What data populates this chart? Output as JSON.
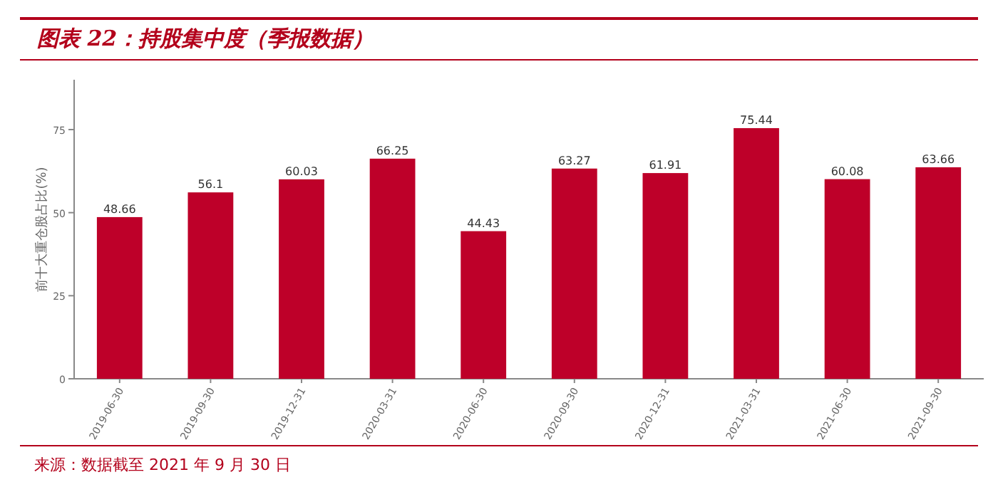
{
  "chart_data": {
    "type": "bar",
    "title": "图表 22：持股集中度（季报数据）",
    "ylabel": "前十大重仓股占比(%)",
    "categories": [
      "2019-06-30",
      "2019-09-30",
      "2019-12-31",
      "2020-03-31",
      "2020-06-30",
      "2020-09-30",
      "2020-12-31",
      "2021-03-31",
      "2021-06-30",
      "2021-09-30"
    ],
    "values": [
      48.66,
      56.1,
      60.03,
      66.25,
      44.43,
      63.27,
      61.91,
      75.44,
      60.08,
      63.66
    ],
    "color": "#be0029",
    "ylim": [
      0,
      90
    ],
    "yticks": [
      0,
      25,
      50,
      75
    ],
    "data_labels": true,
    "annotations": [
      "来源：数据截至 2021 年 9 月 30 日"
    ]
  }
}
